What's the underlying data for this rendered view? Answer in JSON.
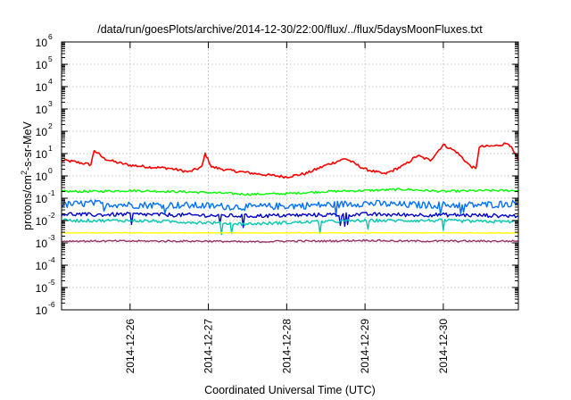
{
  "chart_data": {
    "type": "line",
    "title": "/data/run/goesPlots/archive/2014-12-30/22:00/flux/../flux/5daysMoonFluxes.txt",
    "xlabel": "Coordinated Universal Time (UTC)",
    "ylabel": {
      "base": "protons/cm",
      "sup": "2",
      "rest": "-s-sr-MeV"
    },
    "x_range": [
      "2014-12-25T03:00",
      "2014-12-30T23:00"
    ],
    "x_tick_labels": [
      "2014-12-26",
      "2014-12-27",
      "2014-12-28",
      "2014-12-29",
      "2014-12-30"
    ],
    "y_scale": "log",
    "ylim": [
      1e-06,
      1000000.0
    ],
    "y_tick_labels": [
      {
        "base": "10",
        "exp": "6"
      },
      {
        "base": "10",
        "exp": "5"
      },
      {
        "base": "10",
        "exp": "4"
      },
      {
        "base": "10",
        "exp": "3"
      },
      {
        "base": "10",
        "exp": "2"
      },
      {
        "base": "10",
        "exp": "1"
      },
      {
        "base": "10",
        "exp": "0"
      },
      {
        "base": "10",
        "exp": "-1"
      },
      {
        "base": "10",
        "exp": "-2"
      },
      {
        "base": "10",
        "exp": "-3"
      },
      {
        "base": "10",
        "exp": "-4"
      },
      {
        "base": "10",
        "exp": "-5"
      },
      {
        "base": "10",
        "exp": "-6"
      }
    ],
    "grid": true,
    "series": [
      {
        "color": "#ff0000",
        "points": [
          [
            "2014-12-25T03:00",
            5
          ],
          [
            "2014-12-25T06:00",
            4.5
          ],
          [
            "2014-12-25T09:00",
            3.8
          ],
          [
            "2014-12-25T12:00",
            3.2
          ],
          [
            "2014-12-25T13:00",
            14
          ],
          [
            "2014-12-25T16:00",
            6
          ],
          [
            "2014-12-25T20:00",
            4
          ],
          [
            "2014-12-26T00:00",
            3
          ],
          [
            "2014-12-26T06:00",
            2.5
          ],
          [
            "2014-12-26T12:00",
            2.2
          ],
          [
            "2014-12-26T18:00",
            1.5
          ],
          [
            "2014-12-26T22:00",
            2.5
          ],
          [
            "2014-12-26T23:00",
            10
          ],
          [
            "2014-12-27T01:00",
            2.5
          ],
          [
            "2014-12-27T06:00",
            1.8
          ],
          [
            "2014-12-27T12:00",
            1.4
          ],
          [
            "2014-12-27T18:00",
            1.1
          ],
          [
            "2014-12-28T00:00",
            0.9
          ],
          [
            "2014-12-28T06:00",
            1.3
          ],
          [
            "2014-12-28T12:00",
            3
          ],
          [
            "2014-12-28T18:00",
            6
          ],
          [
            "2014-12-29T00:00",
            2
          ],
          [
            "2014-12-29T06:00",
            1.2
          ],
          [
            "2014-12-29T12:00",
            3
          ],
          [
            "2014-12-29T16:00",
            8
          ],
          [
            "2014-12-29T20:00",
            5
          ],
          [
            "2014-12-30T00:00",
            25
          ],
          [
            "2014-12-30T04:00",
            12
          ],
          [
            "2014-12-30T08:00",
            3
          ],
          [
            "2014-12-30T10:00",
            2
          ],
          [
            "2014-12-30T11:00",
            20
          ],
          [
            "2014-12-30T16:00",
            22
          ],
          [
            "2014-12-30T20:00",
            30
          ],
          [
            "2014-12-30T23:00",
            5
          ]
        ]
      },
      {
        "color": "#00ff00",
        "points": [
          [
            "2014-12-25T03:00",
            0.2
          ],
          [
            "2014-12-25T12:00",
            0.2
          ],
          [
            "2014-12-26T00:00",
            0.22
          ],
          [
            "2014-12-26T12:00",
            0.2
          ],
          [
            "2014-12-27T00:00",
            0.18
          ],
          [
            "2014-12-27T12:00",
            0.15
          ],
          [
            "2014-12-28T00:00",
            0.16
          ],
          [
            "2014-12-28T12:00",
            0.2
          ],
          [
            "2014-12-29T00:00",
            0.22
          ],
          [
            "2014-12-29T12:00",
            0.25
          ],
          [
            "2014-12-30T00:00",
            0.2
          ],
          [
            "2014-12-30T12:00",
            0.22
          ],
          [
            "2014-12-30T23:00",
            0.22
          ]
        ]
      },
      {
        "color": "#0070ff",
        "points": [
          [
            "2014-12-25T03:00",
            0.05
          ],
          [
            "2014-12-25T12:00",
            0.06
          ],
          [
            "2014-12-26T00:00",
            0.05
          ],
          [
            "2014-12-26T12:00",
            0.05
          ],
          [
            "2014-12-27T00:00",
            0.045
          ],
          [
            "2014-12-27T12:00",
            0.04
          ],
          [
            "2014-12-28T00:00",
            0.045
          ],
          [
            "2014-12-28T12:00",
            0.05
          ],
          [
            "2014-12-29T00:00",
            0.06
          ],
          [
            "2014-12-29T12:00",
            0.05
          ],
          [
            "2014-12-30T00:00",
            0.05
          ],
          [
            "2014-12-30T12:00",
            0.05
          ],
          [
            "2014-12-30T23:00",
            0.06
          ]
        ]
      },
      {
        "color": "#0000cc",
        "points": [
          [
            "2014-12-25T03:00",
            0.02
          ],
          [
            "2014-12-25T12:00",
            0.018
          ],
          [
            "2014-12-26T00:00",
            0.019
          ],
          [
            "2014-12-26T12:00",
            0.018
          ],
          [
            "2014-12-27T00:00",
            0.017
          ],
          [
            "2014-12-27T12:00",
            0.016
          ],
          [
            "2014-12-28T00:00",
            0.017
          ],
          [
            "2014-12-28T12:00",
            0.018
          ],
          [
            "2014-12-29T00:00",
            0.019
          ],
          [
            "2014-12-29T12:00",
            0.018
          ],
          [
            "2014-12-30T00:00",
            0.018
          ],
          [
            "2014-12-30T12:00",
            0.017
          ],
          [
            "2014-12-30T23:00",
            0.016
          ]
        ]
      },
      {
        "color": "#00c8b0",
        "points": [
          [
            "2014-12-25T03:00",
            0.01
          ],
          [
            "2014-12-25T12:00",
            0.01
          ],
          [
            "2014-12-26T00:00",
            0.01
          ],
          [
            "2014-12-26T12:00",
            0.009
          ],
          [
            "2014-12-27T00:00",
            0.008
          ],
          [
            "2014-12-27T12:00",
            0.007
          ],
          [
            "2014-12-28T00:00",
            0.008
          ],
          [
            "2014-12-28T12:00",
            0.009
          ],
          [
            "2014-12-29T00:00",
            0.01
          ],
          [
            "2014-12-29T12:00",
            0.01
          ],
          [
            "2014-12-30T00:00",
            0.01
          ],
          [
            "2014-12-30T12:00",
            0.009
          ],
          [
            "2014-12-30T23:00",
            0.009
          ]
        ]
      },
      {
        "color": "#ffff00",
        "points": [
          [
            "2014-12-25T03:00",
            0.0028
          ],
          [
            "2014-12-26T00:00",
            0.0028
          ],
          [
            "2014-12-27T00:00",
            0.0028
          ],
          [
            "2014-12-28T00:00",
            0.0028
          ],
          [
            "2014-12-29T00:00",
            0.0028
          ],
          [
            "2014-12-30T00:00",
            0.0028
          ],
          [
            "2014-12-30T23:00",
            0.0028
          ]
        ]
      },
      {
        "color": "#993366",
        "points": [
          [
            "2014-12-25T03:00",
            0.0012
          ],
          [
            "2014-12-25T12:00",
            0.0012
          ],
          [
            "2014-12-26T00:00",
            0.0012
          ],
          [
            "2014-12-26T12:00",
            0.0012
          ],
          [
            "2014-12-27T00:00",
            0.0012
          ],
          [
            "2014-12-27T12:00",
            0.0011
          ],
          [
            "2014-12-28T00:00",
            0.0012
          ],
          [
            "2014-12-28T12:00",
            0.0012
          ],
          [
            "2014-12-29T00:00",
            0.0013
          ],
          [
            "2014-12-29T12:00",
            0.0012
          ],
          [
            "2014-12-30T00:00",
            0.0012
          ],
          [
            "2014-12-30T12:00",
            0.0012
          ],
          [
            "2014-12-30T23:00",
            0.0012
          ]
        ]
      }
    ]
  }
}
